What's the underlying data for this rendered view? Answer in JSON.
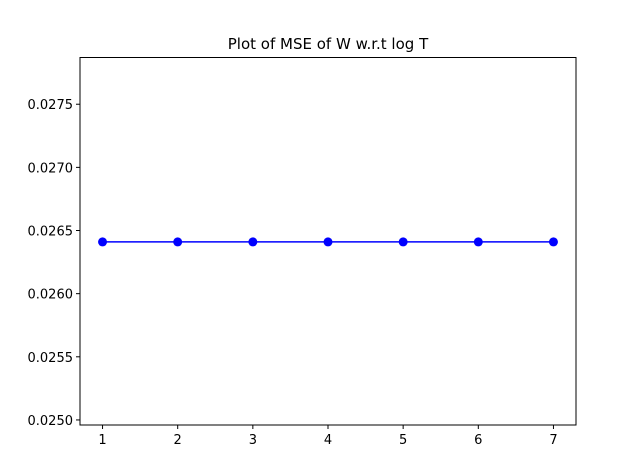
{
  "chart_data": {
    "type": "line",
    "title": "Plot of MSE of W w.r.t log T",
    "xlabel": "",
    "ylabel": "",
    "x": [
      1,
      2,
      3,
      4,
      5,
      6,
      7
    ],
    "series": [
      {
        "values": [
          0.02641,
          0.02641,
          0.02641,
          0.02641,
          0.02641,
          0.02641,
          0.02641
        ],
        "color": "#0000ff",
        "marker": "circle"
      }
    ],
    "xlim": [
      0.7,
      7.3
    ],
    "ylim": [
      0.02496,
      0.02787
    ],
    "xticks": [
      1,
      2,
      3,
      4,
      5,
      6,
      7
    ],
    "xtick_labels": [
      "1",
      "2",
      "3",
      "4",
      "5",
      "6",
      "7"
    ],
    "yticks": [
      0.025,
      0.0255,
      0.026,
      0.0265,
      0.027,
      0.0275
    ],
    "ytick_labels": [
      "0.0250",
      "0.0255",
      "0.0260",
      "0.0265",
      "0.0270",
      "0.0275"
    ],
    "grid": false,
    "legend": "none"
  }
}
